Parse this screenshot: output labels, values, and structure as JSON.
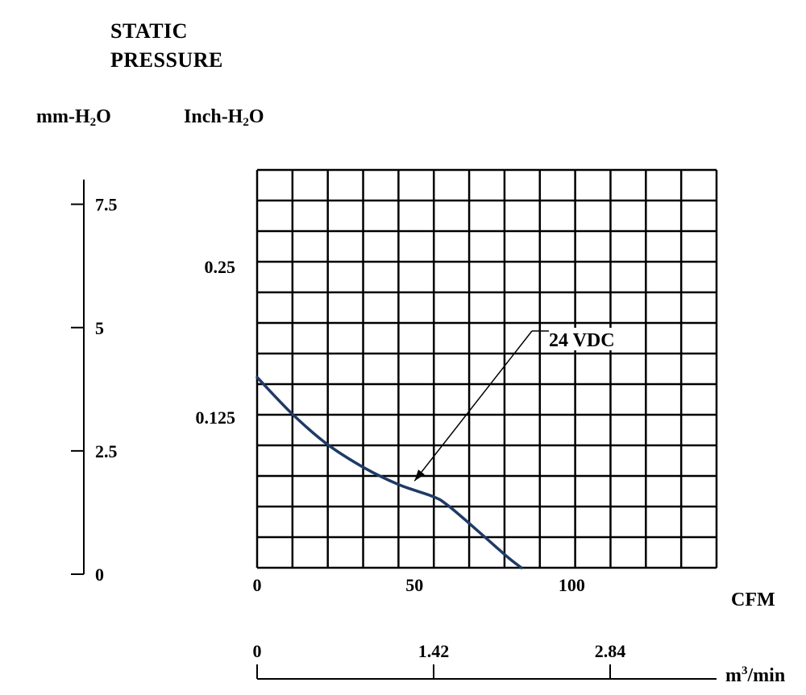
{
  "title_lines": [
    "STATIC",
    "PRESSURE"
  ],
  "units": {
    "mm_h2o": {
      "prefix": "mm-H",
      "sub": "2",
      "suffix": "O"
    },
    "inch_h2o": {
      "prefix": "Inch-H",
      "sub": "2",
      "suffix": "O"
    },
    "cfm": "CFM",
    "m3min": {
      "prefix": "m",
      "sup": "3",
      "suffix": "/min"
    }
  },
  "colors": {
    "curve": "#1f3a66",
    "grid": "#000000",
    "text": "#000000"
  },
  "chart_data": {
    "type": "line",
    "title": "STATIC PRESSURE",
    "grid": true,
    "xaxes": {
      "cfm": {
        "label": "CFM",
        "ticks": [
          "0",
          "50",
          "100"
        ],
        "tick_values": [
          0,
          50,
          100
        ],
        "range": [
          0,
          146
        ]
      },
      "m3_per_min": {
        "label": "m3/min",
        "ticks": [
          "0",
          "1.42",
          "2.84"
        ],
        "tick_values": [
          0,
          1.42,
          2.84
        ],
        "range": [
          0,
          2.84
        ]
      }
    },
    "yaxes": {
      "inch_h2o": {
        "label": "Inch-H2O",
        "ticks": [
          "0.25",
          "0.125"
        ],
        "tick_values": [
          0.25,
          0.125
        ],
        "range": [
          0,
          0.33
        ]
      },
      "mm_h2o": {
        "label": "mm-H2O",
        "ticks": [
          "7.5",
          "5",
          "2.5",
          "0"
        ],
        "tick_values": [
          7.5,
          5,
          2.5,
          0
        ],
        "range": [
          0,
          8.0
        ]
      }
    },
    "series": [
      {
        "name": "24 VDC",
        "x_cfm": [
          0,
          11,
          22,
          34,
          45,
          56,
          60,
          66,
          73,
          80,
          84
        ],
        "y_inch_h2o": [
          0.158,
          0.128,
          0.103,
          0.083,
          0.069,
          0.059,
          0.053,
          0.04,
          0.024,
          0.008,
          0.0
        ]
      }
    ],
    "annotations": [
      {
        "text": "24 VDC",
        "points_to_x_cfm": 49,
        "points_to_y_inch_h2o": 0.068
      }
    ]
  }
}
